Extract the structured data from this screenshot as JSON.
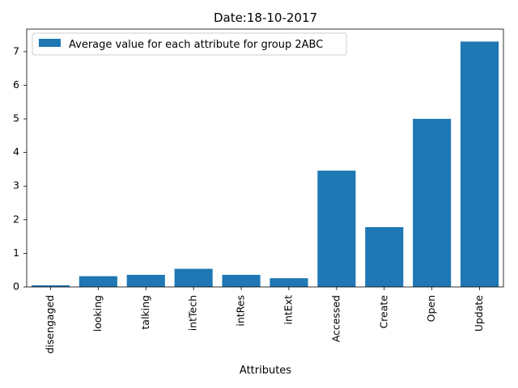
{
  "chart_data": {
    "type": "bar",
    "title": "Date:18-10-2017",
    "xlabel": "Attributes",
    "ylabel": "",
    "categories": [
      "disengaged",
      "looking",
      "talking",
      "intTech",
      "intRes",
      "intExt",
      "Accessed",
      "Create",
      "Open",
      "Update"
    ],
    "series": [
      {
        "name": "Average value for each attribute for group 2ABC",
        "values": [
          0.05,
          0.32,
          0.36,
          0.54,
          0.36,
          0.26,
          3.46,
          1.78,
          5.0,
          7.3
        ],
        "color": "#1f77b4"
      }
    ],
    "ylim": [
      0,
      7.67
    ],
    "yticks": [
      0,
      1,
      2,
      3,
      4,
      5,
      6,
      7
    ],
    "grid": false,
    "legend_position": "top-left"
  }
}
